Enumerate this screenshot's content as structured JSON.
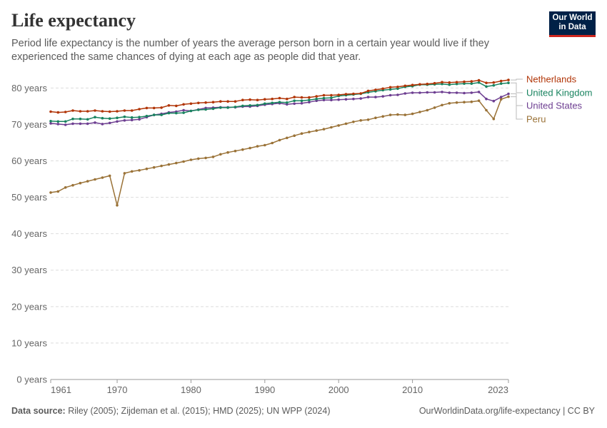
{
  "header": {
    "title": "Life expectancy",
    "subtitle": "Period life expectancy is the number of years the average person born in a certain year would live if they experienced the same chances of dying at each age as people did that year."
  },
  "logo": {
    "line1": "Our World",
    "line2": "in Data"
  },
  "footer": {
    "source_label": "Data source:",
    "source_text": "Riley (2005); Zijdeman et al. (2015); HMD (2025); UN WPP (2024)",
    "link": "OurWorldinData.org/life-expectancy | CC BY"
  },
  "colors": {
    "Netherlands": "#b13507",
    "United Kingdom": "#18835f",
    "United States": "#6d3e91",
    "Peru": "#9a7237"
  },
  "chart_data": {
    "type": "line",
    "title": "Life expectancy",
    "ylabel": "",
    "xlabel": "",
    "x_range": [
      1961,
      2023
    ],
    "ylim": [
      0,
      83
    ],
    "y_ticks": [
      0,
      10,
      20,
      30,
      40,
      50,
      60,
      70,
      80
    ],
    "y_tick_labels": [
      "0 years",
      "10 years",
      "20 years",
      "30 years",
      "40 years",
      "50 years",
      "60 years",
      "70 years",
      "80 years"
    ],
    "x_ticks": [
      1961,
      1970,
      1980,
      1990,
      2000,
      2010,
      2023
    ],
    "grid": "horizontal dashed",
    "legend": "right, at line ends",
    "series": [
      {
        "name": "Netherlands",
        "x": [
          1961,
          1962,
          1963,
          1964,
          1965,
          1966,
          1967,
          1968,
          1969,
          1970,
          1971,
          1972,
          1973,
          1974,
          1975,
          1976,
          1977,
          1978,
          1979,
          1980,
          1981,
          1982,
          1983,
          1984,
          1985,
          1986,
          1987,
          1988,
          1989,
          1990,
          1991,
          1992,
          1993,
          1994,
          1995,
          1996,
          1997,
          1998,
          1999,
          2000,
          2001,
          2002,
          2003,
          2004,
          2005,
          2006,
          2007,
          2008,
          2009,
          2010,
          2011,
          2012,
          2013,
          2014,
          2015,
          2016,
          2017,
          2018,
          2019,
          2020,
          2021,
          2022,
          2023
        ],
        "values": [
          73.5,
          73.3,
          73.4,
          73.8,
          73.6,
          73.6,
          73.8,
          73.6,
          73.5,
          73.6,
          73.8,
          73.8,
          74.2,
          74.5,
          74.5,
          74.6,
          75.2,
          75.1,
          75.5,
          75.7,
          75.9,
          76.0,
          76.1,
          76.3,
          76.3,
          76.3,
          76.7,
          76.8,
          76.7,
          76.9,
          77.0,
          77.2,
          77.0,
          77.5,
          77.4,
          77.4,
          77.7,
          78.0,
          78.0,
          78.1,
          78.3,
          78.4,
          78.5,
          79.2,
          79.5,
          79.8,
          80.2,
          80.3,
          80.6,
          80.8,
          81.0,
          81.1,
          81.3,
          81.6,
          81.5,
          81.6,
          81.7,
          81.8,
          82.1,
          81.4,
          81.5,
          81.9,
          82.2
        ]
      },
      {
        "name": "United Kingdom",
        "x": [
          1961,
          1962,
          1963,
          1964,
          1965,
          1966,
          1967,
          1968,
          1969,
          1970,
          1971,
          1972,
          1973,
          1974,
          1975,
          1976,
          1977,
          1978,
          1979,
          1980,
          1981,
          1982,
          1983,
          1984,
          1985,
          1986,
          1987,
          1988,
          1989,
          1990,
          1991,
          1992,
          1993,
          1994,
          1995,
          1996,
          1997,
          1998,
          1999,
          2000,
          2001,
          2002,
          2003,
          2004,
          2005,
          2006,
          2007,
          2008,
          2009,
          2010,
          2011,
          2012,
          2013,
          2014,
          2015,
          2016,
          2017,
          2018,
          2019,
          2020,
          2021,
          2022,
          2023
        ],
        "values": [
          70.9,
          70.8,
          70.8,
          71.5,
          71.5,
          71.4,
          72.0,
          71.7,
          71.6,
          71.8,
          72.1,
          71.9,
          72.0,
          72.3,
          72.6,
          72.6,
          73.1,
          73.1,
          73.2,
          73.7,
          74.0,
          74.1,
          74.3,
          74.6,
          74.6,
          74.8,
          75.1,
          75.2,
          75.3,
          75.7,
          75.9,
          76.1,
          76.0,
          76.5,
          76.5,
          76.7,
          77.0,
          77.2,
          77.3,
          77.8,
          78.0,
          78.2,
          78.4,
          78.8,
          79.1,
          79.4,
          79.6,
          79.8,
          80.3,
          80.5,
          80.9,
          80.9,
          81.0,
          81.1,
          80.9,
          81.1,
          81.2,
          81.2,
          81.5,
          80.4,
          80.7,
          81.2,
          81.4
        ]
      },
      {
        "name": "United States",
        "x": [
          1961,
          1962,
          1963,
          1964,
          1965,
          1966,
          1967,
          1968,
          1969,
          1970,
          1971,
          1972,
          1973,
          1974,
          1975,
          1976,
          1977,
          1978,
          1979,
          1980,
          1981,
          1982,
          1983,
          1984,
          1985,
          1986,
          1987,
          1988,
          1989,
          1990,
          1991,
          1992,
          1993,
          1994,
          1995,
          1996,
          1997,
          1998,
          1999,
          2000,
          2001,
          2002,
          2003,
          2004,
          2005,
          2006,
          2007,
          2008,
          2009,
          2010,
          2011,
          2012,
          2013,
          2014,
          2015,
          2016,
          2017,
          2018,
          2019,
          2020,
          2021,
          2022,
          2023
        ],
        "values": [
          70.3,
          70.1,
          69.9,
          70.2,
          70.2,
          70.2,
          70.5,
          70.1,
          70.4,
          70.8,
          71.1,
          71.2,
          71.4,
          72.0,
          72.6,
          72.9,
          73.3,
          73.5,
          73.9,
          73.7,
          74.1,
          74.5,
          74.6,
          74.7,
          74.7,
          74.7,
          74.9,
          74.9,
          75.1,
          75.4,
          75.6,
          75.8,
          75.5,
          75.7,
          75.8,
          76.1,
          76.5,
          76.7,
          76.7,
          76.8,
          76.9,
          77.0,
          77.1,
          77.5,
          77.5,
          77.7,
          78.0,
          78.1,
          78.5,
          78.7,
          78.7,
          78.8,
          78.8,
          78.9,
          78.7,
          78.7,
          78.6,
          78.7,
          78.9,
          77.0,
          76.4,
          77.5,
          78.4
        ]
      },
      {
        "name": "Peru",
        "x": [
          1961,
          1962,
          1963,
          1964,
          1965,
          1966,
          1967,
          1968,
          1969,
          1970,
          1971,
          1972,
          1973,
          1974,
          1975,
          1976,
          1977,
          1978,
          1979,
          1980,
          1981,
          1982,
          1983,
          1984,
          1985,
          1986,
          1987,
          1988,
          1989,
          1990,
          1991,
          1992,
          1993,
          1994,
          1995,
          1996,
          1997,
          1998,
          1999,
          2000,
          2001,
          2002,
          2003,
          2004,
          2005,
          2006,
          2007,
          2008,
          2009,
          2010,
          2011,
          2012,
          2013,
          2014,
          2015,
          2016,
          2017,
          2018,
          2019,
          2020,
          2021,
          2022,
          2023
        ],
        "values": [
          51.3,
          51.6,
          52.7,
          53.3,
          53.9,
          54.4,
          54.9,
          55.4,
          55.9,
          47.8,
          56.6,
          57.1,
          57.4,
          57.8,
          58.2,
          58.6,
          59.0,
          59.4,
          59.8,
          60.3,
          60.6,
          60.8,
          61.1,
          61.8,
          62.3,
          62.7,
          63.1,
          63.5,
          64.0,
          64.3,
          64.9,
          65.7,
          66.3,
          66.9,
          67.5,
          67.9,
          68.3,
          68.7,
          69.2,
          69.7,
          70.2,
          70.7,
          71.1,
          71.3,
          71.8,
          72.2,
          72.6,
          72.7,
          72.6,
          72.9,
          73.4,
          73.9,
          74.6,
          75.3,
          75.8,
          76.0,
          76.1,
          76.2,
          76.5,
          73.9,
          71.5,
          76.9,
          77.6
        ]
      }
    ]
  }
}
